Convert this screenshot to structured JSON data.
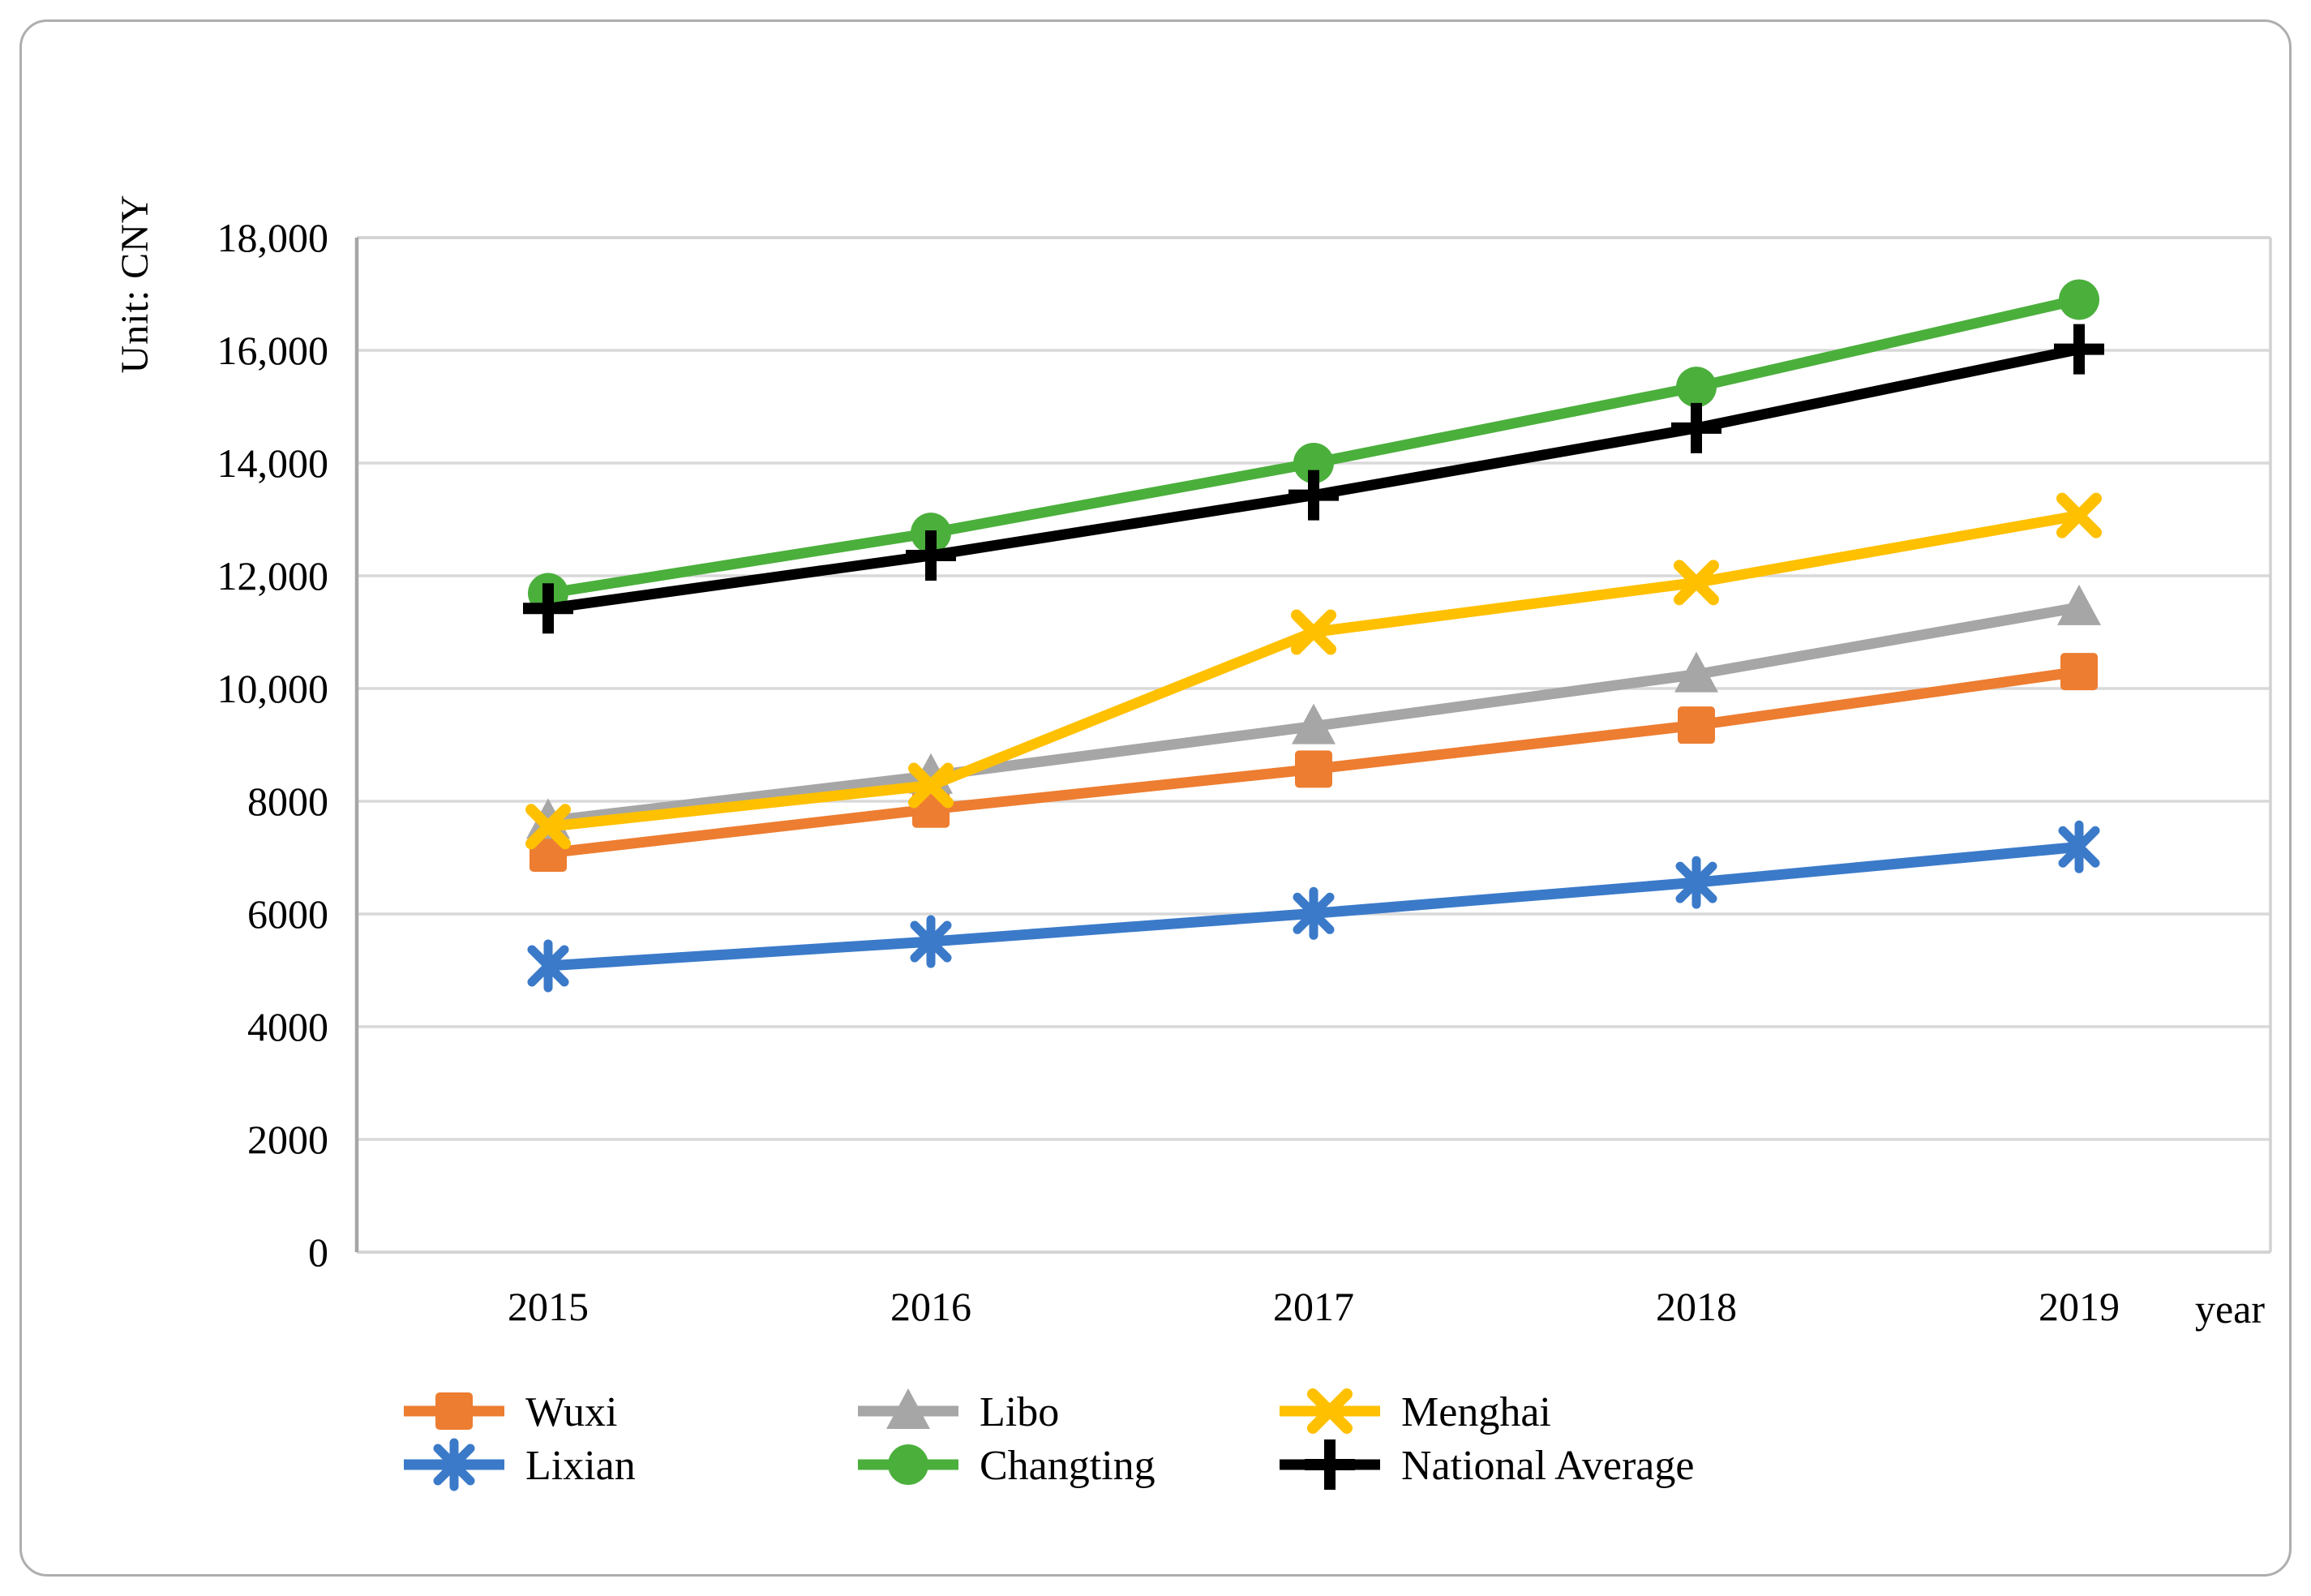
{
  "figure": {
    "y_axis_title": "Unit: CNY",
    "x_axis_title": "year"
  },
  "colors": {
    "gridline": "#d9d9d9",
    "axis_line": "#a6a6a6",
    "plot_border": "#d2d2d2",
    "figure_border": "#aeaeae",
    "text": "#000000"
  },
  "chart_data": {
    "type": "line",
    "title": "",
    "xlabel": "year",
    "ylabel": "Unit: CNY",
    "categories": [
      "2015",
      "2016",
      "2017",
      "2018",
      "2019"
    ],
    "series": [
      {
        "name": "Wuxi",
        "color": "#ED7D31",
        "marker": "square",
        "values": [
          7080,
          7860,
          8570,
          9350,
          10300
        ]
      },
      {
        "name": "Libo",
        "color": "#A6A6A6",
        "marker": "triangle",
        "values": [
          7650,
          8450,
          9330,
          10250,
          11440
        ]
      },
      {
        "name": "Menghai",
        "color": "#FFC000",
        "marker": "x",
        "values": [
          7550,
          8280,
          11000,
          11880,
          13070
        ]
      },
      {
        "name": "Lixian",
        "color": "#3B7AC9",
        "marker": "asterisk",
        "values": [
          5080,
          5510,
          6010,
          6560,
          7190
        ]
      },
      {
        "name": "Changting",
        "color": "#4BAF3C",
        "marker": "circle",
        "values": [
          11690,
          12760,
          14000,
          15350,
          16900
        ]
      },
      {
        "name": "National Average",
        "color": "#000000",
        "marker": "plus",
        "values": [
          11420,
          12360,
          13430,
          14620,
          16020
        ]
      }
    ],
    "ylim": [
      0,
      18000
    ],
    "y_tick_labels": [
      "0",
      "2000",
      "4000",
      "6000",
      "8000",
      "10,000",
      "12,000",
      "14,000",
      "16,000",
      "18,000"
    ],
    "y_tick_values": [
      0,
      2000,
      4000,
      6000,
      8000,
      10000,
      12000,
      14000,
      16000,
      18000
    ],
    "grid": true,
    "legend_position": "bottom",
    "legend_rows": [
      [
        "Wuxi",
        "Libo",
        "Menghai"
      ],
      [
        "Lixian",
        "Changting",
        "National Average"
      ]
    ]
  }
}
